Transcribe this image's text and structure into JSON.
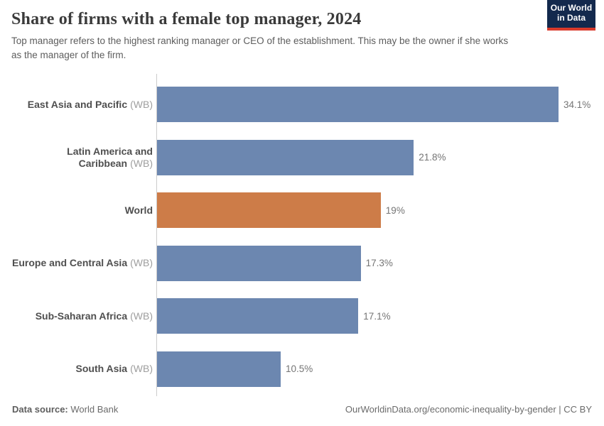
{
  "header": {
    "title": "Share of firms with a female top manager, 2024",
    "subtitle": "Top manager refers to the highest ranking manager or CEO of the establishment. This may be the owner if she works as the manager of the firm.",
    "logo": {
      "line1": "Our World",
      "line2": "in Data"
    }
  },
  "chart_data": {
    "type": "bar",
    "orientation": "horizontal",
    "title": "Share of firms with a female top manager, 2024",
    "xlabel": "",
    "ylabel": "",
    "xlim": [
      0,
      34.1
    ],
    "grid": false,
    "legend": false,
    "categories": [
      "East Asia and Pacific",
      "Latin America and Caribbean",
      "World",
      "Europe and Central Asia",
      "Sub-Saharan Africa",
      "South Asia"
    ],
    "category_suffixes": [
      "(WB)",
      "(WB)",
      "",
      "(WB)",
      "(WB)",
      "(WB)"
    ],
    "values": [
      34.1,
      21.8,
      19,
      17.3,
      17.1,
      10.5
    ],
    "value_labels": [
      "34.1%",
      "21.8%",
      "19%",
      "17.3%",
      "17.1%",
      "10.5%"
    ],
    "bar_colors": [
      "#6c87b0",
      "#6c87b0",
      "#cd7c48",
      "#6c87b0",
      "#6c87b0",
      "#6c87b0"
    ],
    "highlight_category": "World"
  },
  "colors": {
    "bar_default": "#6c87b0",
    "bar_highlight": "#cd7c48",
    "logo_bg": "#13294d",
    "logo_accent": "#d93a2b",
    "axis": "#cccccc"
  },
  "footer": {
    "data_source_label": "Data source:",
    "data_source_value": "World Bank",
    "attribution_url": "OurWorldinData.org/economic-inequality-by-gender",
    "separator": " | ",
    "license": "CC BY"
  }
}
